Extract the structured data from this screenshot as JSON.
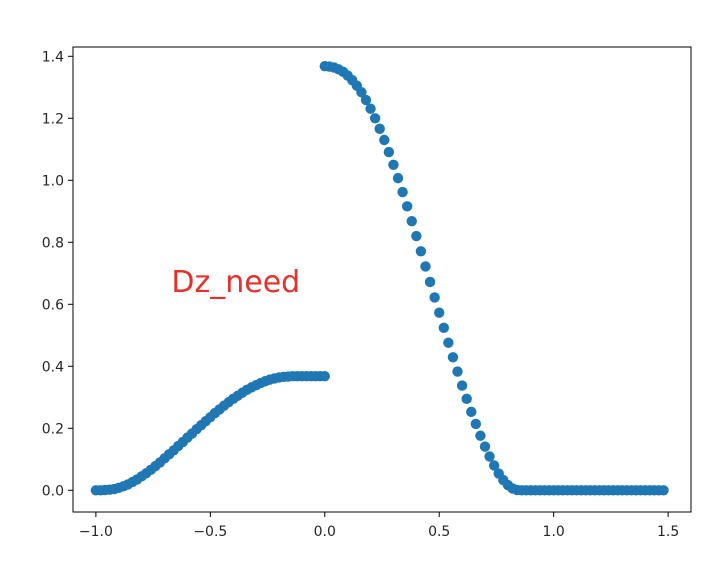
{
  "chart_data": {
    "type": "scatter",
    "title": "",
    "xlabel": "",
    "ylabel": "",
    "xlim": [
      -1.1,
      1.6
    ],
    "ylim": [
      -0.07,
      1.43
    ],
    "x_ticks": [
      {
        "value": -1.0,
        "label": "−1.0"
      },
      {
        "value": -0.5,
        "label": "−0.5"
      },
      {
        "value": 0.0,
        "label": "0.0"
      },
      {
        "value": 0.5,
        "label": "0.5"
      },
      {
        "value": 1.0,
        "label": "1.0"
      },
      {
        "value": 1.5,
        "label": "1.5"
      }
    ],
    "y_ticks": [
      {
        "value": 0.0,
        "label": "0.0"
      },
      {
        "value": 0.2,
        "label": "0.2"
      },
      {
        "value": 0.4,
        "label": "0.4"
      },
      {
        "value": 0.6,
        "label": "0.6"
      },
      {
        "value": 0.8,
        "label": "0.8"
      },
      {
        "value": 1.0,
        "label": "1.0"
      },
      {
        "value": 1.2,
        "label": "1.2"
      },
      {
        "value": 1.4,
        "label": "1.4"
      }
    ],
    "grid": false,
    "legend": "none",
    "annotation": {
      "text": "Dz_need",
      "x": -0.67,
      "y": 0.64,
      "color": "#e8302a"
    },
    "series": [
      {
        "color": "#1f77b4",
        "points": [
          {
            "x": -1.0,
            "y": 0.0
          },
          {
            "x": -0.98,
            "y": 0.0
          },
          {
            "x": -0.96,
            "y": 0.001
          },
          {
            "x": -0.94,
            "y": 0.002
          },
          {
            "x": -0.92,
            "y": 0.004
          },
          {
            "x": -0.9,
            "y": 0.008
          },
          {
            "x": -0.88,
            "y": 0.013
          },
          {
            "x": -0.86,
            "y": 0.019
          },
          {
            "x": -0.84,
            "y": 0.027
          },
          {
            "x": -0.82,
            "y": 0.035
          },
          {
            "x": -0.8,
            "y": 0.045
          },
          {
            "x": -0.78,
            "y": 0.055
          },
          {
            "x": -0.76,
            "y": 0.066
          },
          {
            "x": -0.74,
            "y": 0.078
          },
          {
            "x": -0.72,
            "y": 0.09
          },
          {
            "x": -0.7,
            "y": 0.103
          },
          {
            "x": -0.68,
            "y": 0.116
          },
          {
            "x": -0.66,
            "y": 0.129
          },
          {
            "x": -0.64,
            "y": 0.143
          },
          {
            "x": -0.62,
            "y": 0.156
          },
          {
            "x": -0.6,
            "y": 0.17
          },
          {
            "x": -0.58,
            "y": 0.183
          },
          {
            "x": -0.56,
            "y": 0.197
          },
          {
            "x": -0.54,
            "y": 0.21
          },
          {
            "x": -0.52,
            "y": 0.223
          },
          {
            "x": -0.5,
            "y": 0.236
          },
          {
            "x": -0.48,
            "y": 0.249
          },
          {
            "x": -0.46,
            "y": 0.261
          },
          {
            "x": -0.44,
            "y": 0.273
          },
          {
            "x": -0.42,
            "y": 0.284
          },
          {
            "x": -0.4,
            "y": 0.295
          },
          {
            "x": -0.38,
            "y": 0.305
          },
          {
            "x": -0.36,
            "y": 0.315
          },
          {
            "x": -0.34,
            "y": 0.324
          },
          {
            "x": -0.32,
            "y": 0.332
          },
          {
            "x": -0.3,
            "y": 0.339
          },
          {
            "x": -0.28,
            "y": 0.346
          },
          {
            "x": -0.26,
            "y": 0.352
          },
          {
            "x": -0.24,
            "y": 0.357
          },
          {
            "x": -0.22,
            "y": 0.361
          },
          {
            "x": -0.2,
            "y": 0.364
          },
          {
            "x": -0.18,
            "y": 0.366
          },
          {
            "x": -0.16,
            "y": 0.367
          },
          {
            "x": -0.14,
            "y": 0.368
          },
          {
            "x": -0.12,
            "y": 0.368
          },
          {
            "x": -0.1,
            "y": 0.368
          },
          {
            "x": -0.08,
            "y": 0.368
          },
          {
            "x": -0.06,
            "y": 0.368
          },
          {
            "x": -0.04,
            "y": 0.368
          },
          {
            "x": -0.02,
            "y": 0.368
          },
          {
            "x": 0.0,
            "y": 0.368
          },
          {
            "x": 0.0,
            "y": 1.368
          },
          {
            "x": 0.02,
            "y": 1.367
          },
          {
            "x": 0.04,
            "y": 1.364
          },
          {
            "x": 0.06,
            "y": 1.358
          },
          {
            "x": 0.08,
            "y": 1.35
          },
          {
            "x": 0.1,
            "y": 1.338
          },
          {
            "x": 0.12,
            "y": 1.323
          },
          {
            "x": 0.14,
            "y": 1.305
          },
          {
            "x": 0.16,
            "y": 1.284
          },
          {
            "x": 0.18,
            "y": 1.259
          },
          {
            "x": 0.2,
            "y": 1.231
          },
          {
            "x": 0.22,
            "y": 1.2
          },
          {
            "x": 0.24,
            "y": 1.166
          },
          {
            "x": 0.26,
            "y": 1.13
          },
          {
            "x": 0.28,
            "y": 1.091
          },
          {
            "x": 0.3,
            "y": 1.05
          },
          {
            "x": 0.32,
            "y": 1.007
          },
          {
            "x": 0.34,
            "y": 0.962
          },
          {
            "x": 0.36,
            "y": 0.916
          },
          {
            "x": 0.38,
            "y": 0.868
          },
          {
            "x": 0.4,
            "y": 0.82
          },
          {
            "x": 0.42,
            "y": 0.771
          },
          {
            "x": 0.44,
            "y": 0.722
          },
          {
            "x": 0.46,
            "y": 0.672
          },
          {
            "x": 0.48,
            "y": 0.622
          },
          {
            "x": 0.5,
            "y": 0.573
          },
          {
            "x": 0.52,
            "y": 0.524
          },
          {
            "x": 0.54,
            "y": 0.476
          },
          {
            "x": 0.56,
            "y": 0.429
          },
          {
            "x": 0.58,
            "y": 0.383
          },
          {
            "x": 0.6,
            "y": 0.338
          },
          {
            "x": 0.62,
            "y": 0.295
          },
          {
            "x": 0.64,
            "y": 0.253
          },
          {
            "x": 0.66,
            "y": 0.214
          },
          {
            "x": 0.68,
            "y": 0.176
          },
          {
            "x": 0.7,
            "y": 0.141
          },
          {
            "x": 0.72,
            "y": 0.109
          },
          {
            "x": 0.74,
            "y": 0.08
          },
          {
            "x": 0.76,
            "y": 0.054
          },
          {
            "x": 0.78,
            "y": 0.033
          },
          {
            "x": 0.8,
            "y": 0.017
          },
          {
            "x": 0.82,
            "y": 0.006
          },
          {
            "x": 0.84,
            "y": 0.001
          },
          {
            "x": 0.86,
            "y": 0.0
          },
          {
            "x": 0.88,
            "y": 0.0
          },
          {
            "x": 0.9,
            "y": 0.0
          },
          {
            "x": 0.92,
            "y": 0.0
          },
          {
            "x": 0.94,
            "y": 0.0
          },
          {
            "x": 0.96,
            "y": 0.0
          },
          {
            "x": 0.98,
            "y": 0.0
          },
          {
            "x": 1.0,
            "y": 0.0
          },
          {
            "x": 1.02,
            "y": 0.0
          },
          {
            "x": 1.04,
            "y": 0.0
          },
          {
            "x": 1.06,
            "y": 0.0
          },
          {
            "x": 1.08,
            "y": 0.0
          },
          {
            "x": 1.1,
            "y": 0.0
          },
          {
            "x": 1.12,
            "y": 0.0
          },
          {
            "x": 1.14,
            "y": 0.0
          },
          {
            "x": 1.16,
            "y": 0.0
          },
          {
            "x": 1.18,
            "y": 0.0
          },
          {
            "x": 1.2,
            "y": 0.0
          },
          {
            "x": 1.22,
            "y": 0.0
          },
          {
            "x": 1.24,
            "y": 0.0
          },
          {
            "x": 1.26,
            "y": 0.0
          },
          {
            "x": 1.28,
            "y": 0.0
          },
          {
            "x": 1.3,
            "y": 0.0
          },
          {
            "x": 1.32,
            "y": 0.0
          },
          {
            "x": 1.34,
            "y": 0.0
          },
          {
            "x": 1.36,
            "y": 0.0
          },
          {
            "x": 1.38,
            "y": 0.0
          },
          {
            "x": 1.4,
            "y": 0.0
          },
          {
            "x": 1.42,
            "y": 0.0
          },
          {
            "x": 1.44,
            "y": 0.0
          },
          {
            "x": 1.46,
            "y": 0.0
          },
          {
            "x": 1.48,
            "y": 0.0
          }
        ]
      }
    ]
  }
}
